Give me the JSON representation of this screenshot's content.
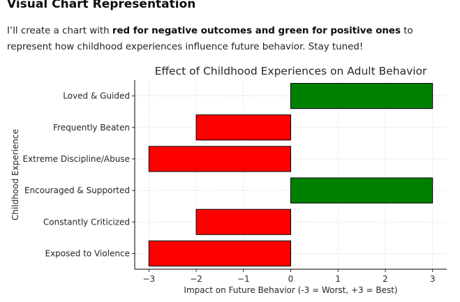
{
  "message": {
    "heading": "Visual Chart Representation",
    "text_before": "I’ll create a chart with ",
    "text_bold": "red for negative outcomes and green for positive ones",
    "text_after": " to represent how childhood experiences influence future behavior. Stay tuned!"
  },
  "colors": {
    "negative": "#ff0000",
    "positive": "#008000",
    "grid": "#d9d9d9"
  },
  "chart_data": {
    "type": "bar",
    "orientation": "horizontal",
    "title": "Effect of Childhood Experiences on Adult Behavior",
    "xlabel": "Impact on Future Behavior (-3 = Worst, +3 = Best)",
    "ylabel": "Childhood Experience",
    "categories": [
      "Loved & Guided",
      "Frequently Beaten",
      "Extreme Discipline/Abuse",
      "Encouraged & Supported",
      "Constantly Criticized",
      "Exposed to Violence"
    ],
    "values": [
      3,
      -2,
      -3,
      3,
      -2,
      -3
    ],
    "xlim": [
      -3.3,
      3.3
    ],
    "xticks": [
      -3,
      -2,
      -1,
      0,
      1,
      2,
      3
    ],
    "xtick_labels": [
      "−3",
      "−2",
      "−1",
      "0",
      "1",
      "2",
      "3"
    ],
    "grid": true,
    "color_rule": "negative red, positive green"
  }
}
